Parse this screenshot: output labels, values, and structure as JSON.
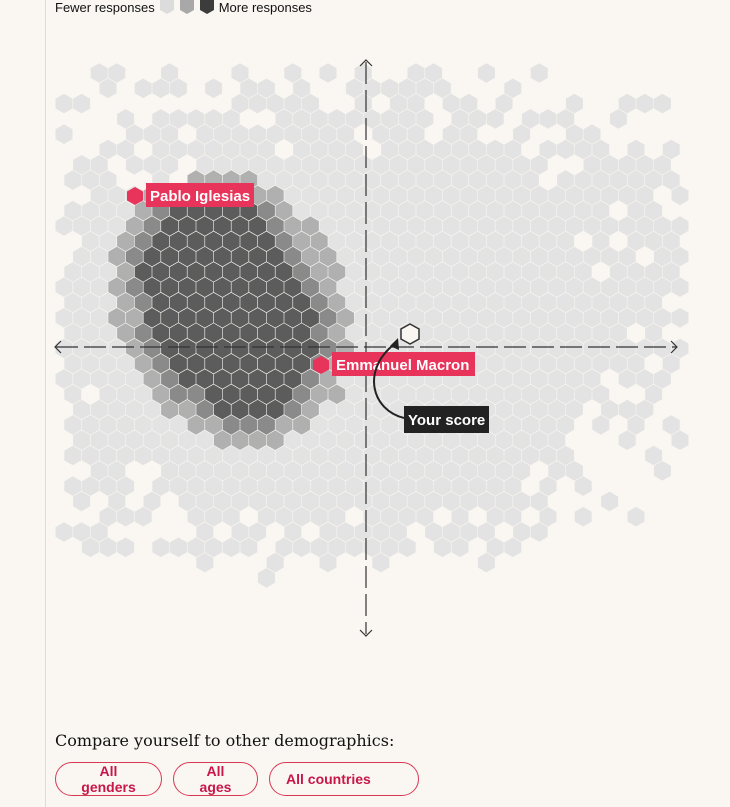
{
  "legend": {
    "fewer_label": "Fewer responses",
    "more_label": "More responses",
    "swatch_colors": [
      "#dcdcdc",
      "#a8a8a8",
      "#3c3c3c"
    ]
  },
  "chart": {
    "markers": [
      {
        "name": "Pablo Iglesias",
        "color": "#e8345a"
      },
      {
        "name": "Emmanuel Macron",
        "color": "#e8345a"
      }
    ],
    "your_score_label": "Your score",
    "colors": {
      "light": "#e3e3e3",
      "mid": "#b0b0b0",
      "dark": "#8a8a8a",
      "darker": "#5c5c5c",
      "axis": "#222222",
      "accent": "#e8345a"
    }
  },
  "compare_title": "Compare yourself to other demographics:",
  "filters": {
    "genders": "All genders",
    "ages": "All ages",
    "countries": "All countries"
  }
}
